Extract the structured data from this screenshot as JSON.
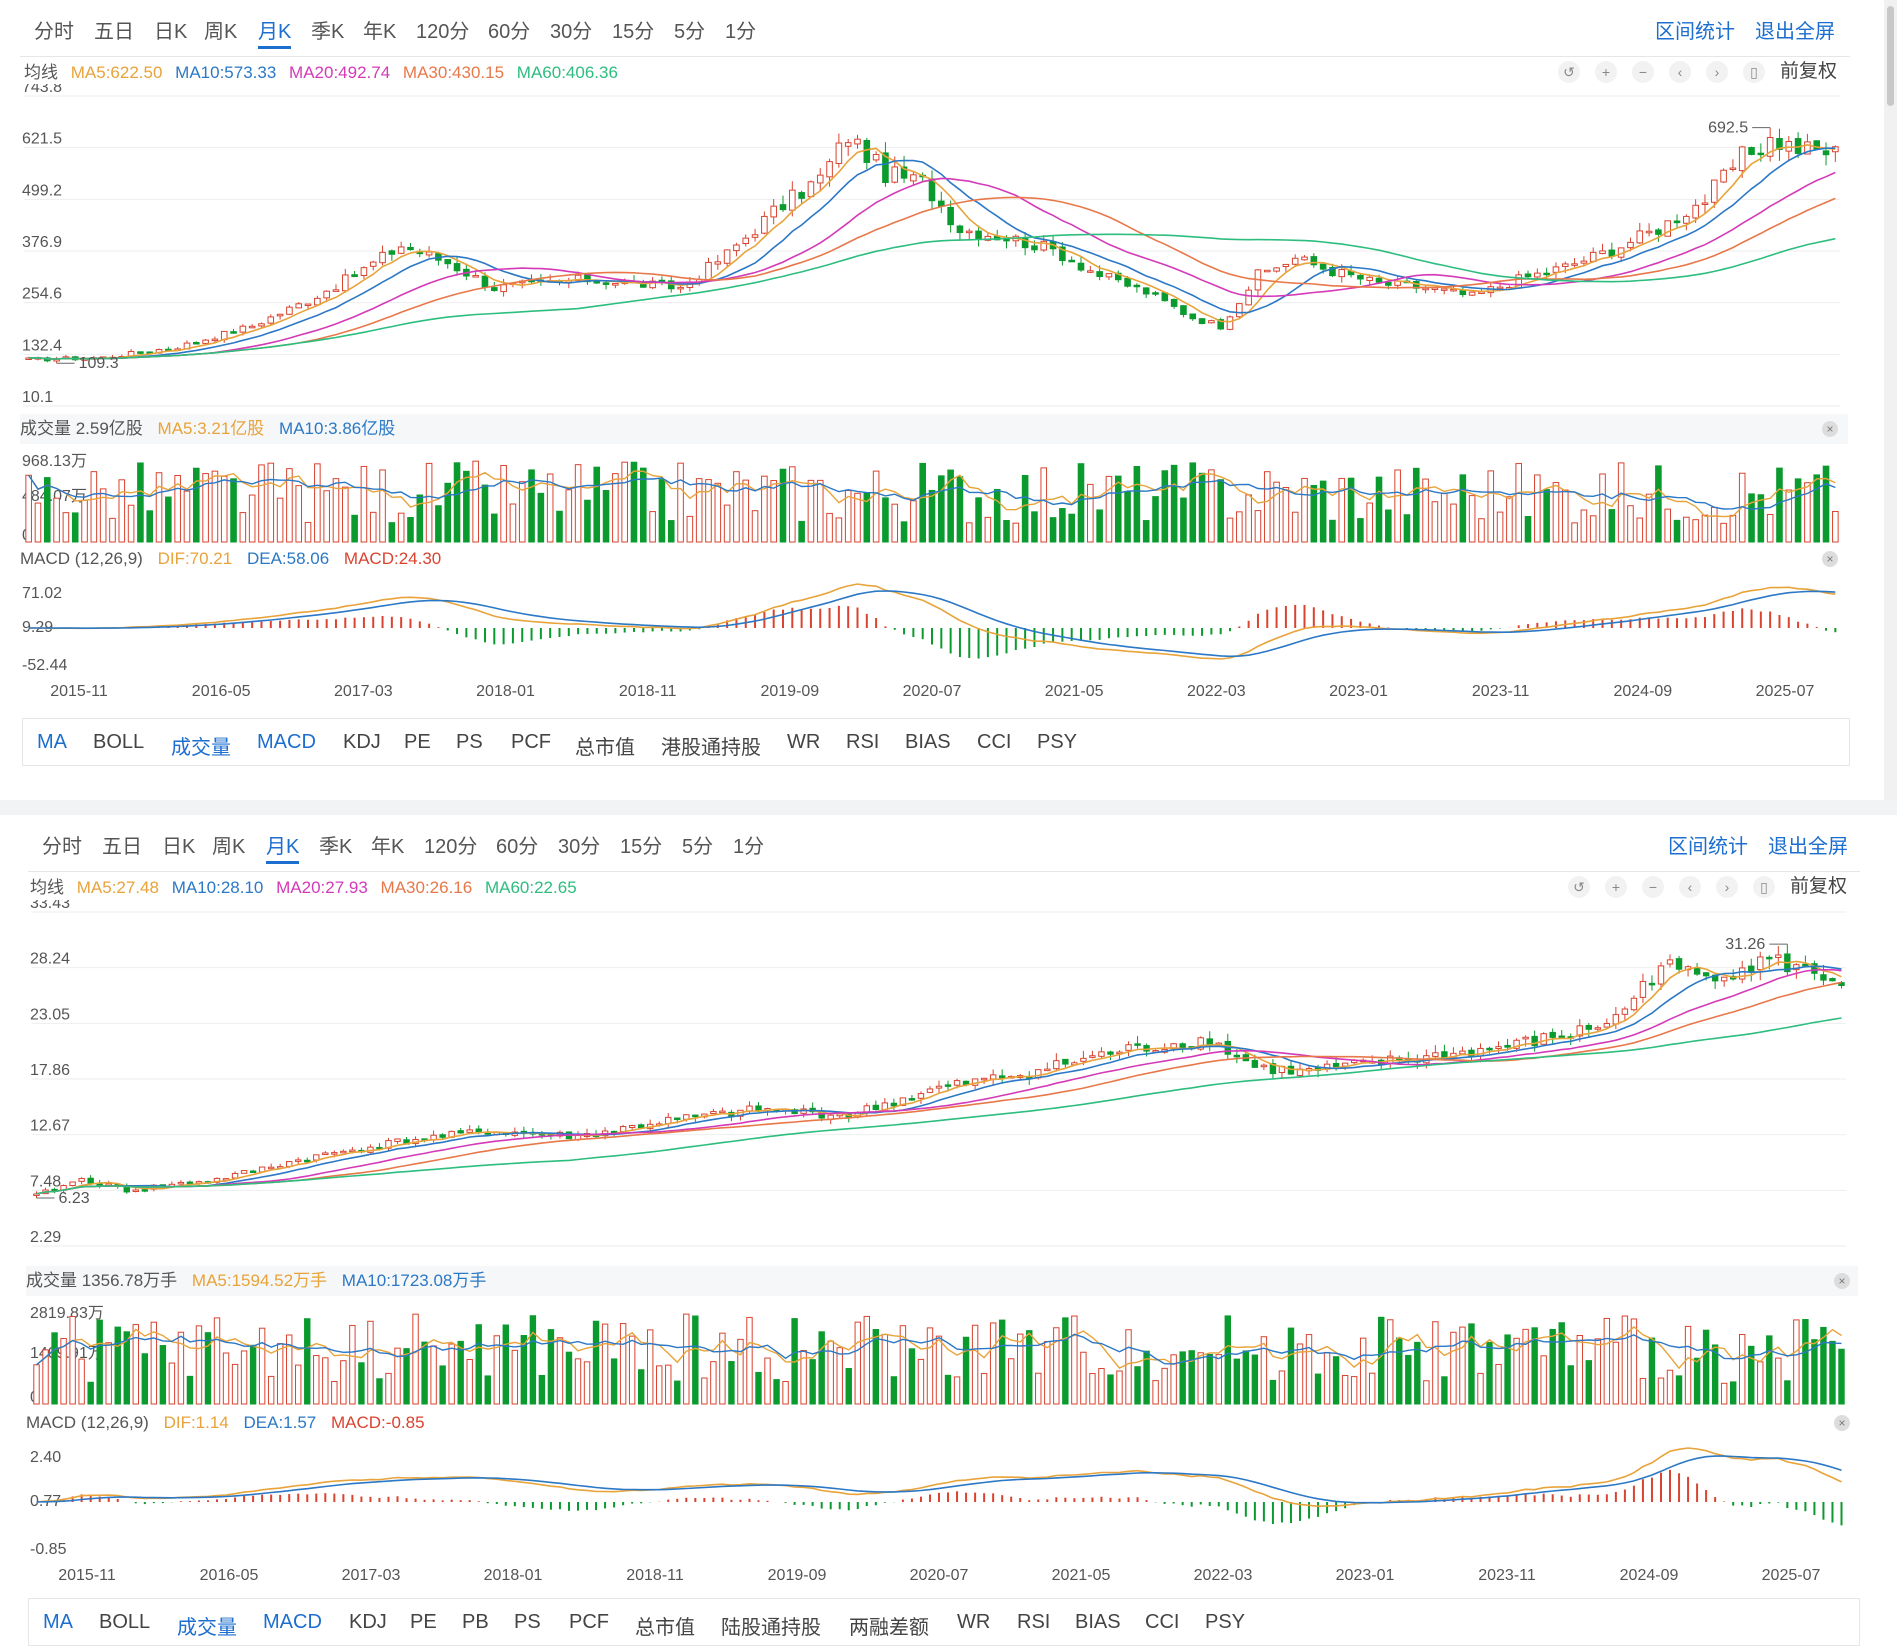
{
  "colors": {
    "up": "#d9432f",
    "down": "#0b9a2e",
    "ma5": "#e8a33a",
    "ma10": "#2b78c6",
    "ma20": "#d43ab8",
    "ma30": "#e8784a",
    "ma60": "#2dbd7f",
    "grid": "#eeeeee",
    "accent": "#1c6ecf"
  },
  "top": {
    "tabs": [
      "分时",
      "五日",
      "日K",
      "周K",
      "月K",
      "季K",
      "年K",
      "120分",
      "60分",
      "30分",
      "15分",
      "5分",
      "1分"
    ],
    "active_tab": "月K",
    "right_links": [
      "区间统计",
      "退出全屏"
    ],
    "ma_label": "均线",
    "ma": [
      "MA5:622.50",
      "MA10:573.33",
      "MA20:492.74",
      "MA30:430.15",
      "MA60:406.36"
    ],
    "icons": [
      "undo-icon",
      "zoom-in-icon",
      "zoom-out-icon",
      "left-icon",
      "right-icon",
      "candle-icon"
    ],
    "fq_label": "前复权",
    "volume_header": [
      "成交量 2.59亿股",
      "MA5:3.21亿股",
      "MA10:3.86亿股"
    ],
    "macd_header": [
      "MACD (12,26,9)",
      "DIF:70.21",
      "DEA:58.06",
      "MACD:24.30"
    ],
    "bottom_tabs": [
      "MA",
      "BOLL",
      "成交量",
      "MACD",
      "KDJ",
      "PE",
      "PS",
      "PCF",
      "总市值",
      "港股通持股",
      "WR",
      "RSI",
      "BIAS",
      "CCI",
      "PSY"
    ],
    "blue_tabs": [
      "MA",
      "成交量",
      "MACD"
    ],
    "chart_data": {
      "type": "candlestick",
      "price_ticks": [
        "743.8",
        "621.5",
        "499.2",
        "376.9",
        "254.6",
        "132.4",
        "10.1"
      ],
      "ylim": [
        10.1,
        743.8
      ],
      "max_label": "692.5",
      "min_label": "109.3",
      "volume_ticks": [
        "968.13万",
        "484.07万",
        "0"
      ],
      "macd_ticks": [
        "71.02",
        "9.29",
        "-52.44"
      ],
      "x_labels": [
        "2015-11",
        "2016-05",
        "2017-03",
        "2018-01",
        "2018-11",
        "2019-09",
        "2020-07",
        "2021-05",
        "2022-03",
        "2023-01",
        "2023-11",
        "2024-09",
        "2025-07"
      ],
      "close_anchors": [
        [
          0,
          120
        ],
        [
          8,
          125
        ],
        [
          16,
          150
        ],
        [
          24,
          200
        ],
        [
          30,
          260
        ],
        [
          35,
          320
        ],
        [
          40,
          390
        ],
        [
          45,
          350
        ],
        [
          50,
          290
        ],
        [
          55,
          300
        ],
        [
          60,
          310
        ],
        [
          65,
          300
        ],
        [
          70,
          290
        ],
        [
          75,
          370
        ],
        [
          80,
          470
        ],
        [
          85,
          550
        ],
        [
          88,
          650
        ],
        [
          92,
          560
        ],
        [
          96,
          540
        ],
        [
          100,
          430
        ],
        [
          105,
          410
        ],
        [
          110,
          380
        ],
        [
          115,
          320
        ],
        [
          120,
          280
        ],
        [
          125,
          220
        ],
        [
          128,
          200
        ],
        [
          132,
          320
        ],
        [
          136,
          360
        ],
        [
          140,
          330
        ],
        [
          145,
          300
        ],
        [
          150,
          290
        ],
        [
          155,
          270
        ],
        [
          160,
          310
        ],
        [
          165,
          340
        ],
        [
          170,
          380
        ],
        [
          175,
          430
        ],
        [
          180,
          500
        ],
        [
          184,
          600
        ],
        [
          187,
          640
        ],
        [
          190,
          620
        ],
        [
          194,
          610
        ]
      ]
    }
  },
  "bottom": {
    "tabs": [
      "分时",
      "五日",
      "日K",
      "周K",
      "月K",
      "季K",
      "年K",
      "120分",
      "60分",
      "30分",
      "15分",
      "5分",
      "1分"
    ],
    "active_tab": "月K",
    "right_links": [
      "区间统计",
      "退出全屏"
    ],
    "ma_label": "均线",
    "ma": [
      "MA5:27.48",
      "MA10:28.10",
      "MA20:27.93",
      "MA30:26.16",
      "MA60:22.65"
    ],
    "icons": [
      "undo-icon",
      "zoom-in-icon",
      "zoom-out-icon",
      "left-icon",
      "right-icon",
      "candle-icon"
    ],
    "fq_label": "前复权",
    "volume_header": [
      "成交量 1356.78万手",
      "MA5:1594.52万手",
      "MA10:1723.08万手"
    ],
    "macd_header": [
      "MACD (12,26,9)",
      "DIF:1.14",
      "DEA:1.57",
      "MACD:-0.85"
    ],
    "bottom_tabs": [
      "MA",
      "BOLL",
      "成交量",
      "MACD",
      "KDJ",
      "PE",
      "PB",
      "PS",
      "PCF",
      "总市值",
      "陆股通持股",
      "两融差额",
      "WR",
      "RSI",
      "BIAS",
      "CCI",
      "PSY"
    ],
    "blue_tabs": [
      "MA",
      "成交量",
      "MACD"
    ],
    "chart_data": {
      "type": "candlestick",
      "price_ticks": [
        "33.43",
        "28.24",
        "23.05",
        "17.86",
        "12.67",
        "7.48",
        "2.29"
      ],
      "ylim": [
        2.29,
        33.43
      ],
      "max_label": "31.26",
      "min_label": "6.23",
      "volume_ticks": [
        "2819.83万",
        "1409.91万",
        "0"
      ],
      "macd_ticks": [
        "2.40",
        "0.77",
        "-0.85"
      ],
      "x_labels": [
        "2015-11",
        "2016-05",
        "2017-03",
        "2018-01",
        "2018-11",
        "2019-09",
        "2020-07",
        "2021-05",
        "2022-03",
        "2023-01",
        "2023-11",
        "2024-09",
        "2025-07"
      ],
      "close_anchors": [
        [
          0,
          7.0
        ],
        [
          5,
          8.5
        ],
        [
          10,
          7.5
        ],
        [
          20,
          8.5
        ],
        [
          30,
          10.5
        ],
        [
          40,
          12.0
        ],
        [
          50,
          13.0
        ],
        [
          60,
          12.5
        ],
        [
          70,
          14.0
        ],
        [
          80,
          15.0
        ],
        [
          90,
          14.5
        ],
        [
          100,
          17.0
        ],
        [
          110,
          18.5
        ],
        [
          120,
          20.5
        ],
        [
          130,
          21.5
        ],
        [
          135,
          19.0
        ],
        [
          140,
          18.5
        ],
        [
          150,
          19.5
        ],
        [
          160,
          20.5
        ],
        [
          170,
          22.0
        ],
        [
          175,
          23.5
        ],
        [
          180,
          28.5
        ],
        [
          184,
          27.5
        ],
        [
          188,
          28.0
        ],
        [
          192,
          29.0
        ],
        [
          196,
          28.0
        ],
        [
          200,
          27.0
        ]
      ]
    }
  }
}
